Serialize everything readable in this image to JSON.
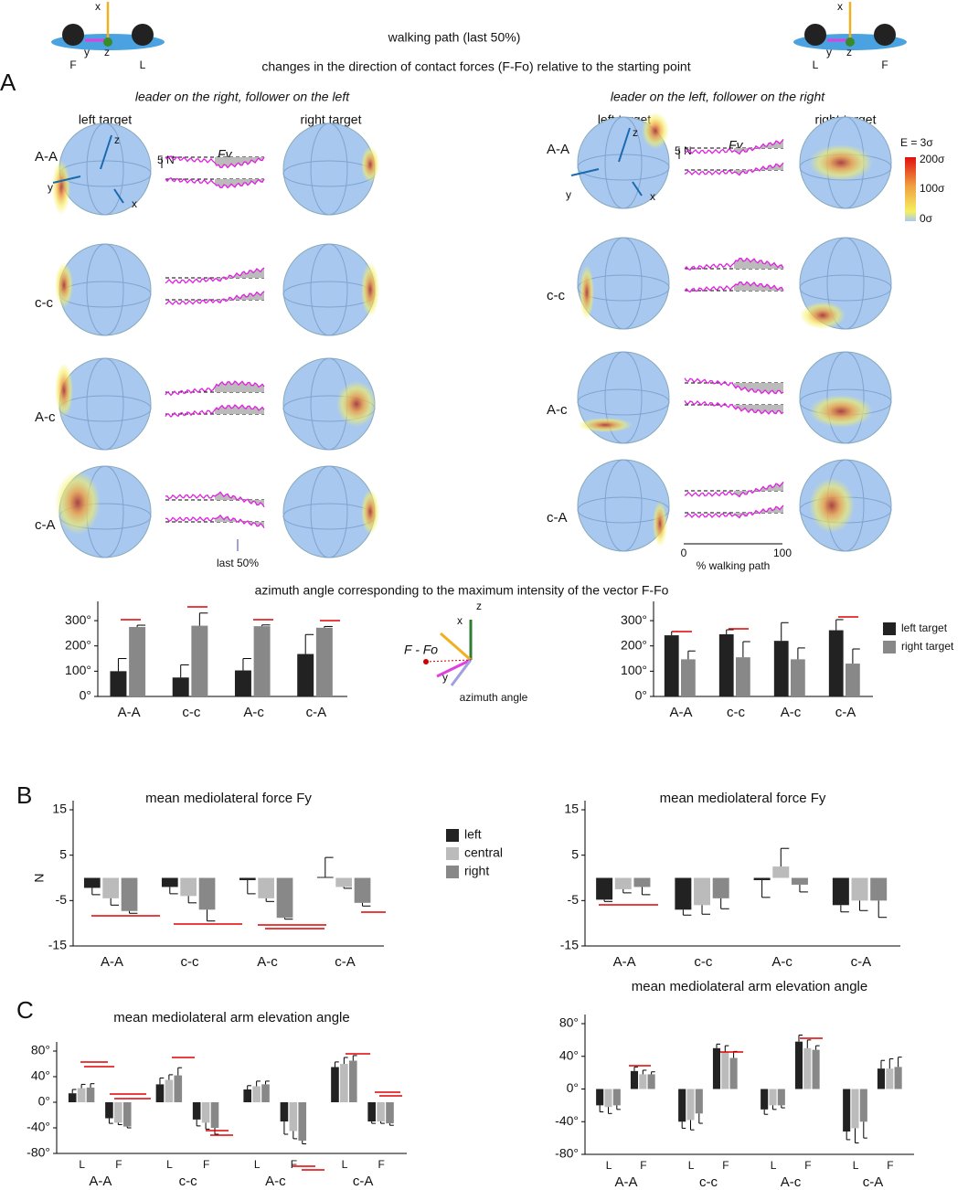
{
  "header": {
    "title": "walking path (last 50%)",
    "subtitle": "changes in the direction of contact forces (F-Fo) relative to the starting point"
  },
  "panels": [
    "A",
    "B",
    "C"
  ],
  "panel_a": {
    "captions": [
      "leader on the right, follower on the left",
      "leader on the left, follower on the right"
    ],
    "targets": [
      "left  target",
      "right  target"
    ],
    "rows": [
      "A-A",
      "c-c",
      "A-c",
      "c-A"
    ],
    "force_label": "Fy",
    "scale": "5 N",
    "last": "last 50%",
    "path_ticks": [
      0,
      100
    ],
    "path_label": "% walking path",
    "colorbar": {
      "title": "E = 3σ",
      "labels": [
        "200σ",
        "100σ",
        "0σ"
      ]
    },
    "axis_names": [
      "x",
      "y",
      "z"
    ],
    "icon_left": [
      "F",
      "L"
    ],
    "icon_right": [
      "L",
      "F"
    ]
  },
  "azimuth_title": "azimuth angle corresponding to the maximum intensity of the vector F-Fo",
  "azimuth_diagram": {
    "vector": "F - Fo",
    "angle": "azimuth angle"
  },
  "chart_data": [
    {
      "type": "bar",
      "categories": [
        "A-A",
        "c-c",
        "A-c",
        "c-A"
      ],
      "series": [
        {
          "color": "#222222",
          "values": [
            100,
            75,
            103,
            168
          ],
          "errors": [
            50,
            50,
            47,
            77
          ]
        },
        {
          "color": "#888888",
          "values": [
            275,
            280,
            278,
            272
          ],
          "errors": [
            7,
            50,
            5,
            5
          ]
        }
      ],
      "ylim": [
        0,
        340
      ],
      "yticks": [
        {
          "value": 0,
          "label": "0°"
        },
        {
          "value": 100,
          "label": "100°"
        },
        {
          "value": 200,
          "label": "200°"
        },
        {
          "value": 300,
          "label": "300°"
        }
      ]
    },
    {
      "type": "bar",
      "categories": [
        "A-A",
        "c-c",
        "A-c",
        "c-A"
      ],
      "series": [
        {
          "name": "left target",
          "color": "#222222",
          "values": [
            242,
            246,
            220,
            262
          ],
          "errors": [
            15,
            18,
            72,
            42
          ]
        },
        {
          "name": "right target",
          "color": "#888888",
          "values": [
            147,
            155,
            147,
            130
          ],
          "errors": [
            33,
            62,
            45,
            58
          ]
        }
      ],
      "ylim": [
        0,
        340
      ],
      "yticks": [
        {
          "value": 0,
          "label": "0°"
        },
        {
          "value": 100,
          "label": "100°"
        },
        {
          "value": 200,
          "label": "200°"
        },
        {
          "value": 300,
          "label": "300°"
        }
      ]
    },
    {
      "type": "bar",
      "title": "mean mediolateral force Fy",
      "ylabel": "N",
      "categories": [
        "A-A",
        "c-c",
        "A-c",
        "c-A"
      ],
      "series": [
        {
          "name": "left",
          "color": "#222222",
          "values": [
            -2.2,
            -2,
            -0.5,
            0.2
          ],
          "errors": [
            1.5,
            1.5,
            3,
            4.3
          ]
        },
        {
          "name": "central",
          "color": "#bbbbbb",
          "values": [
            -4.5,
            -4,
            -4.5,
            -2
          ],
          "errors": [
            1.5,
            1.5,
            0.7,
            0.3
          ]
        },
        {
          "name": "right",
          "color": "#888888",
          "values": [
            -7.3,
            -7,
            -8.8,
            -5.5
          ],
          "errors": [
            0.5,
            2.5,
            0.3,
            0.7
          ]
        }
      ],
      "ylim": [
        -15,
        15
      ],
      "yticks": [
        -15,
        -5,
        5,
        15
      ]
    },
    {
      "type": "bar",
      "title": "mean mediolateral force Fy",
      "categories": [
        "A-A",
        "c-c",
        "A-c",
        "c-A"
      ],
      "series": [
        {
          "color": "#222222",
          "values": [
            -4.8,
            -7,
            -0.5,
            -6
          ],
          "errors": [
            0.4,
            1.2,
            3.8,
            1.5
          ]
        },
        {
          "color": "#bbbbbb",
          "values": [
            -2.5,
            -6,
            2.5,
            -5
          ],
          "errors": [
            0.8,
            2,
            4,
            2.2
          ]
        },
        {
          "color": "#888888",
          "values": [
            -2,
            -4.5,
            -1.5,
            -5
          ],
          "errors": [
            1.7,
            2.3,
            1.6,
            3.7
          ]
        }
      ],
      "ylim": [
        -15,
        15
      ],
      "yticks": [
        -15,
        -5,
        5,
        15
      ]
    },
    {
      "type": "bar",
      "title": "mean mediolateral arm elevation angle",
      "categories": [
        "L",
        "F",
        "L",
        "F",
        "L",
        "F",
        "L",
        "F"
      ],
      "groups": [
        "A-A",
        "c-c",
        "A-c",
        "c-A"
      ],
      "series": [
        {
          "color": "#222222",
          "values": [
            14,
            -25,
            28,
            -27,
            20,
            -30,
            55,
            -30
          ],
          "errors": [
            6,
            8,
            10,
            10,
            6,
            20,
            8,
            3
          ]
        },
        {
          "color": "#bbbbbb",
          "values": [
            22,
            -32,
            35,
            -32,
            25,
            -45,
            60,
            -30
          ],
          "errors": [
            6,
            3,
            8,
            10,
            8,
            12,
            10,
            3
          ]
        },
        {
          "color": "#888888",
          "values": [
            23,
            -38,
            42,
            -40,
            28,
            -60,
            65,
            -33
          ],
          "errors": [
            6,
            2,
            12,
            10,
            5,
            5,
            8,
            3
          ]
        }
      ],
      "ylim": [
        -80,
        80
      ],
      "yticks": [
        {
          "value": -80,
          "label": "-80°"
        },
        {
          "value": -40,
          "label": "-40°"
        },
        {
          "value": 0,
          "label": "0°"
        },
        {
          "value": 40,
          "label": "40°"
        },
        {
          "value": 80,
          "label": "80°"
        }
      ]
    },
    {
      "type": "bar",
      "title": "mean mediolateral arm elevation angle",
      "categories": [
        "L",
        "F",
        "L",
        "F",
        "L",
        "F",
        "L",
        "F"
      ],
      "groups": [
        "A-A",
        "c-c",
        "A-c",
        "c-A"
      ],
      "series": [
        {
          "color": "#222222",
          "values": [
            -20,
            22,
            -40,
            50,
            -25,
            58,
            -52,
            25
          ],
          "errors": [
            8,
            5,
            8,
            5,
            6,
            8,
            10,
            10
          ]
        },
        {
          "color": "#bbbbbb",
          "values": [
            -22,
            18,
            -38,
            45,
            -20,
            50,
            -48,
            25
          ],
          "errors": [
            8,
            5,
            12,
            8,
            5,
            10,
            18,
            12
          ]
        },
        {
          "color": "#888888",
          "values": [
            -20,
            18,
            -30,
            38,
            -20,
            48,
            -40,
            27
          ],
          "errors": [
            5,
            3,
            12,
            8,
            3,
            5,
            20,
            12
          ]
        }
      ],
      "ylim": [
        -80,
        80
      ],
      "yticks": [
        {
          "value": -80,
          "label": "-80°"
        },
        {
          "value": -40,
          "label": "-40°"
        },
        {
          "value": 0,
          "label": "0°"
        },
        {
          "value": 40,
          "label": "40°"
        },
        {
          "value": 80,
          "label": "80°"
        }
      ]
    }
  ]
}
